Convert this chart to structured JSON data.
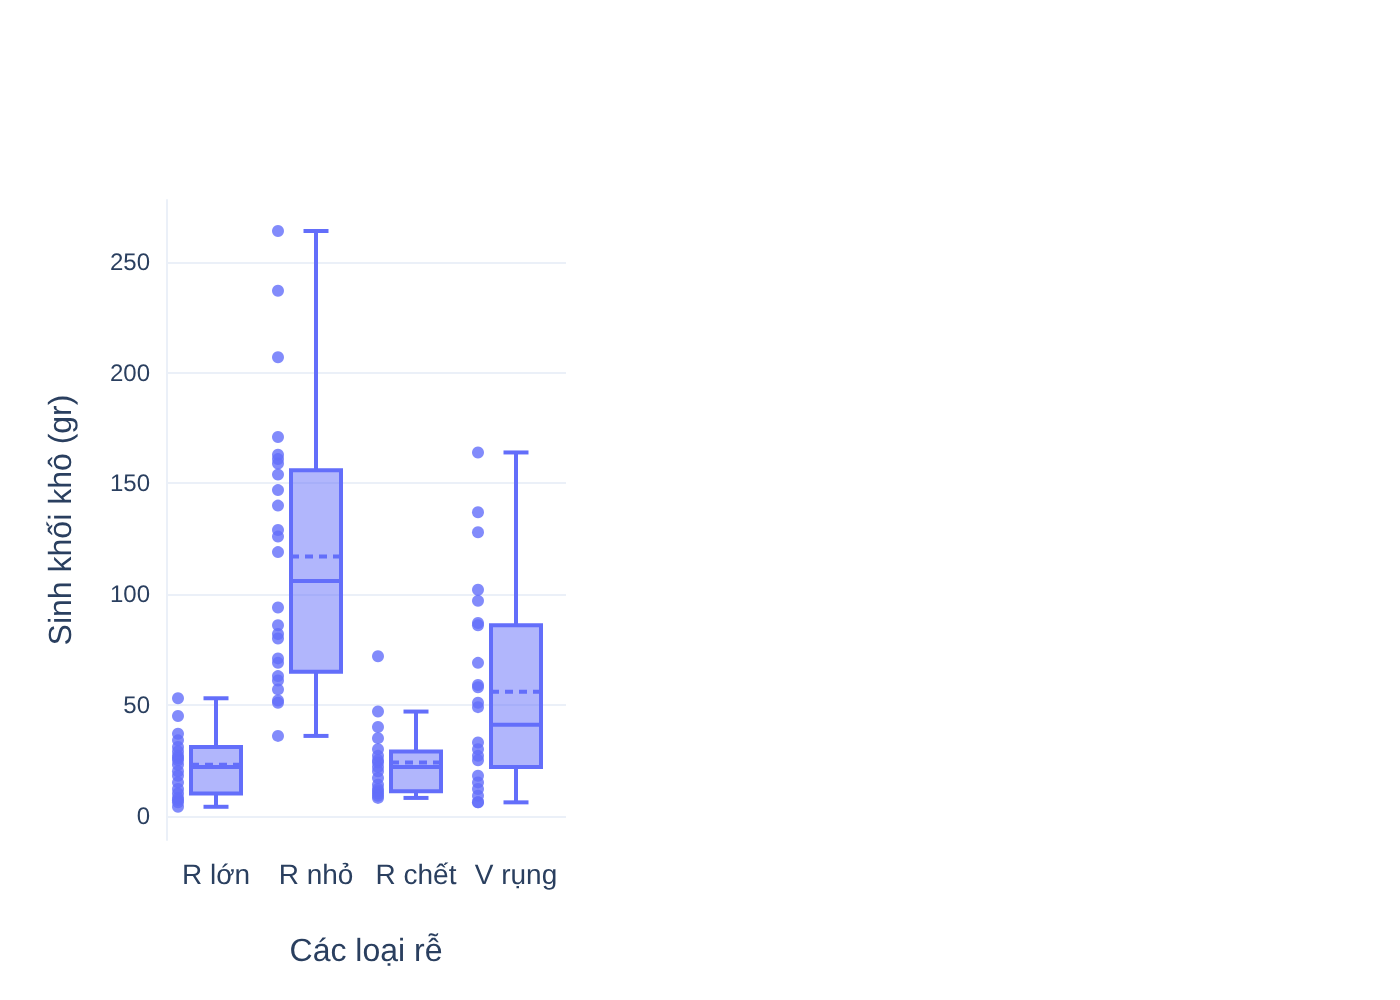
{
  "chart_data": {
    "type": "box",
    "xlabel": "Các loại rễ",
    "ylabel": "Sinh khối khô (gr)",
    "categories": [
      "R lớn",
      "R nhỏ",
      "R chết",
      "V rụng"
    ],
    "series": [
      {
        "type": "box",
        "color": "#636efa",
        "boxes": [
          {
            "low": 4,
            "q1": 10,
            "median": 22,
            "q3": 31,
            "high": 53,
            "mean": 23
          },
          {
            "low": 36,
            "q1": 65,
            "median": 106,
            "q3": 156,
            "high": 264,
            "mean": 117
          },
          {
            "low": 8,
            "q1": 11,
            "median": 22,
            "q3": 29,
            "high": 47,
            "mean": 24
          },
          {
            "low": 6,
            "q1": 22,
            "median": 41,
            "q3": 86,
            "high": 164,
            "mean": 56
          }
        ]
      },
      {
        "type": "scatter",
        "color": "#636efa",
        "x": [
          "R lớn",
          "R lớn",
          "R lớn",
          "R lớn",
          "R lớn",
          "R lớn",
          "R lớn",
          "R lớn",
          "R lớn",
          "R lớn",
          "R lớn",
          "R lớn",
          "R lớn",
          "R lớn",
          "R lớn",
          "R lớn",
          "R lớn",
          "R lớn",
          "R lớn",
          "R nhỏ",
          "R nhỏ",
          "R nhỏ",
          "R nhỏ",
          "R nhỏ",
          "R nhỏ",
          "R nhỏ",
          "R nhỏ",
          "R nhỏ",
          "R nhỏ",
          "R nhỏ",
          "R nhỏ",
          "R nhỏ",
          "R nhỏ",
          "R nhỏ",
          "R nhỏ",
          "R nhỏ",
          "R nhỏ",
          "R nhỏ",
          "R nhỏ",
          "R nhỏ",
          "R nhỏ",
          "R nhỏ",
          "R nhỏ",
          "R nhỏ",
          "R chết",
          "R chết",
          "R chết",
          "R chết",
          "R chết",
          "R chết",
          "R chết",
          "R chết",
          "R chết",
          "R chết",
          "R chết",
          "R chết",
          "R chết",
          "R chết",
          "R chết",
          "R chết",
          "R chết",
          "V rụng",
          "V rụng",
          "V rụng",
          "V rụng",
          "V rụng",
          "V rụng",
          "V rụng",
          "V rụng",
          "V rụng",
          "V rụng",
          "V rụng",
          "V rụng",
          "V rụng",
          "V rụng",
          "V rụng",
          "V rụng",
          "V rụng",
          "V rụng",
          "V rụng",
          "V rụng",
          "V rụng",
          "V rụng"
        ],
        "values": [
          53,
          45,
          37,
          34,
          31,
          29,
          27,
          26,
          25,
          23,
          20,
          18,
          15,
          12,
          10,
          8,
          7,
          6,
          4,
          264,
          237,
          207,
          171,
          163,
          161,
          159,
          154,
          147,
          140,
          129,
          126,
          119,
          94,
          86,
          82,
          80,
          71,
          69,
          63,
          61,
          57,
          52,
          51,
          36,
          72,
          47,
          40,
          35,
          30,
          27,
          25,
          24,
          22,
          20,
          17,
          14,
          12,
          11,
          10,
          9,
          8,
          164,
          137,
          128,
          102,
          97,
          87,
          86,
          69,
          59,
          58,
          51,
          49,
          33,
          30,
          27,
          25,
          18,
          15,
          12,
          9,
          6,
          6
        ]
      }
    ],
    "ylim": [
      -11,
      278
    ],
    "yticks": [
      0,
      50,
      100,
      150,
      200,
      250
    ],
    "grid": "y",
    "marker": "circle"
  }
}
